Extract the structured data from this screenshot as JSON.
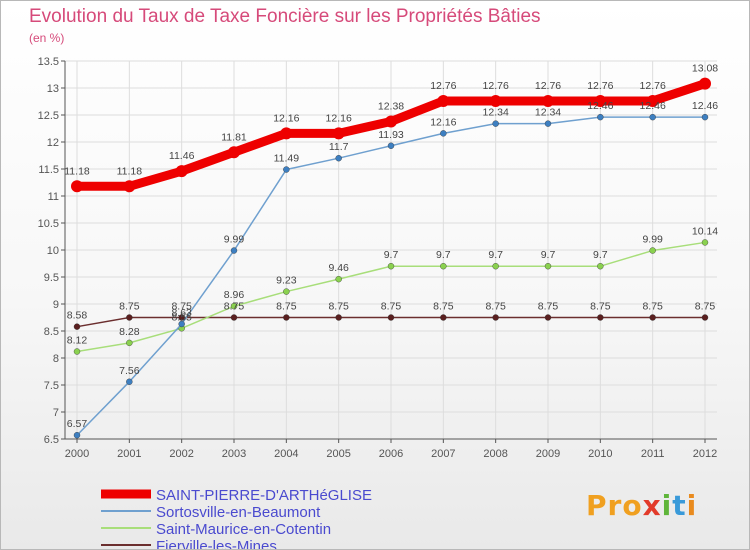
{
  "title": "Evolution du Taux de Taxe Foncière sur les Propriétés Bâties",
  "subtitle": "(en %)",
  "logo": {
    "p": "Pro",
    "x": "x",
    "i": "i",
    "t": "t",
    "i2": "i"
  },
  "colors": {
    "title": "#d64a7a",
    "legend_text": "#4a4acf",
    "axis": "#555555",
    "grid": "#dddddd"
  },
  "chart_data": {
    "type": "line",
    "x": [
      "2000",
      "2001",
      "2002",
      "2003",
      "2004",
      "2005",
      "2006",
      "2007",
      "2008",
      "2009",
      "2010",
      "2011",
      "2012"
    ],
    "y_ticks": [
      "6.5",
      "7",
      "7.5",
      "8",
      "8.5",
      "9",
      "9.5",
      "10",
      "10.5",
      "11",
      "11.5",
      "12",
      "12.5",
      "13",
      "13.5"
    ],
    "ylim": [
      6.5,
      13.5
    ],
    "grid": true,
    "legend_position": "bottom-left",
    "series": [
      {
        "name": "SAINT-PIERRE-D'ARTHéGLISE",
        "color": "#ee0000",
        "width": 9,
        "values": [
          11.18,
          11.18,
          11.46,
          11.81,
          12.16,
          12.16,
          12.38,
          12.76,
          12.76,
          12.76,
          12.76,
          12.76,
          13.08
        ],
        "labels": [
          "11.18",
          "11.18",
          "11.46",
          "11.81",
          "12.16",
          "12.16",
          "12.38",
          "12.76",
          "12.76",
          "12.76",
          "12.76",
          "12.76",
          "13.08"
        ]
      },
      {
        "name": "Sortosville-en-Beaumont",
        "color": "#6fa0cf",
        "marker": "#3d7fc1",
        "width": 1.5,
        "values": [
          6.57,
          7.56,
          8.63,
          9.99,
          11.49,
          11.7,
          11.93,
          12.16,
          12.34,
          12.34,
          12.46,
          12.46,
          12.46
        ],
        "labels": [
          "6.57",
          "7.56",
          "8.63",
          "9.99",
          "11.49",
          "11.7",
          "11.93",
          "12.16",
          "12.34",
          "12.34",
          "12.46",
          "12.46",
          "12.46"
        ]
      },
      {
        "name": "Saint-Maurice-en-Cotentin",
        "color": "#a8de7a",
        "marker": "#8ad14f",
        "width": 1.5,
        "values": [
          8.12,
          8.28,
          8.55,
          8.96,
          9.23,
          9.46,
          9.7,
          9.7,
          9.7,
          9.7,
          9.7,
          9.99,
          10.14
        ],
        "labels": [
          "8.12",
          "8.28",
          "8.55",
          "8.96",
          "9.23",
          "9.46",
          "9.7",
          "9.7",
          "9.7",
          "9.7",
          "9.7",
          "9.99",
          "10.14"
        ]
      },
      {
        "name": "Fierville-les-Mines",
        "color": "#6b2e2e",
        "marker": "#5a1f1f",
        "width": 1.5,
        "values": [
          8.58,
          8.75,
          8.75,
          8.75,
          8.75,
          8.75,
          8.75,
          8.75,
          8.75,
          8.75,
          8.75,
          8.75,
          8.75
        ],
        "labels": [
          "8.58",
          "8.75",
          "8.75",
          "8.75",
          "8.75",
          "8.75",
          "8.75",
          "8.75",
          "8.75",
          "8.75",
          "8.75",
          "8.75",
          "8.75"
        ]
      }
    ]
  }
}
